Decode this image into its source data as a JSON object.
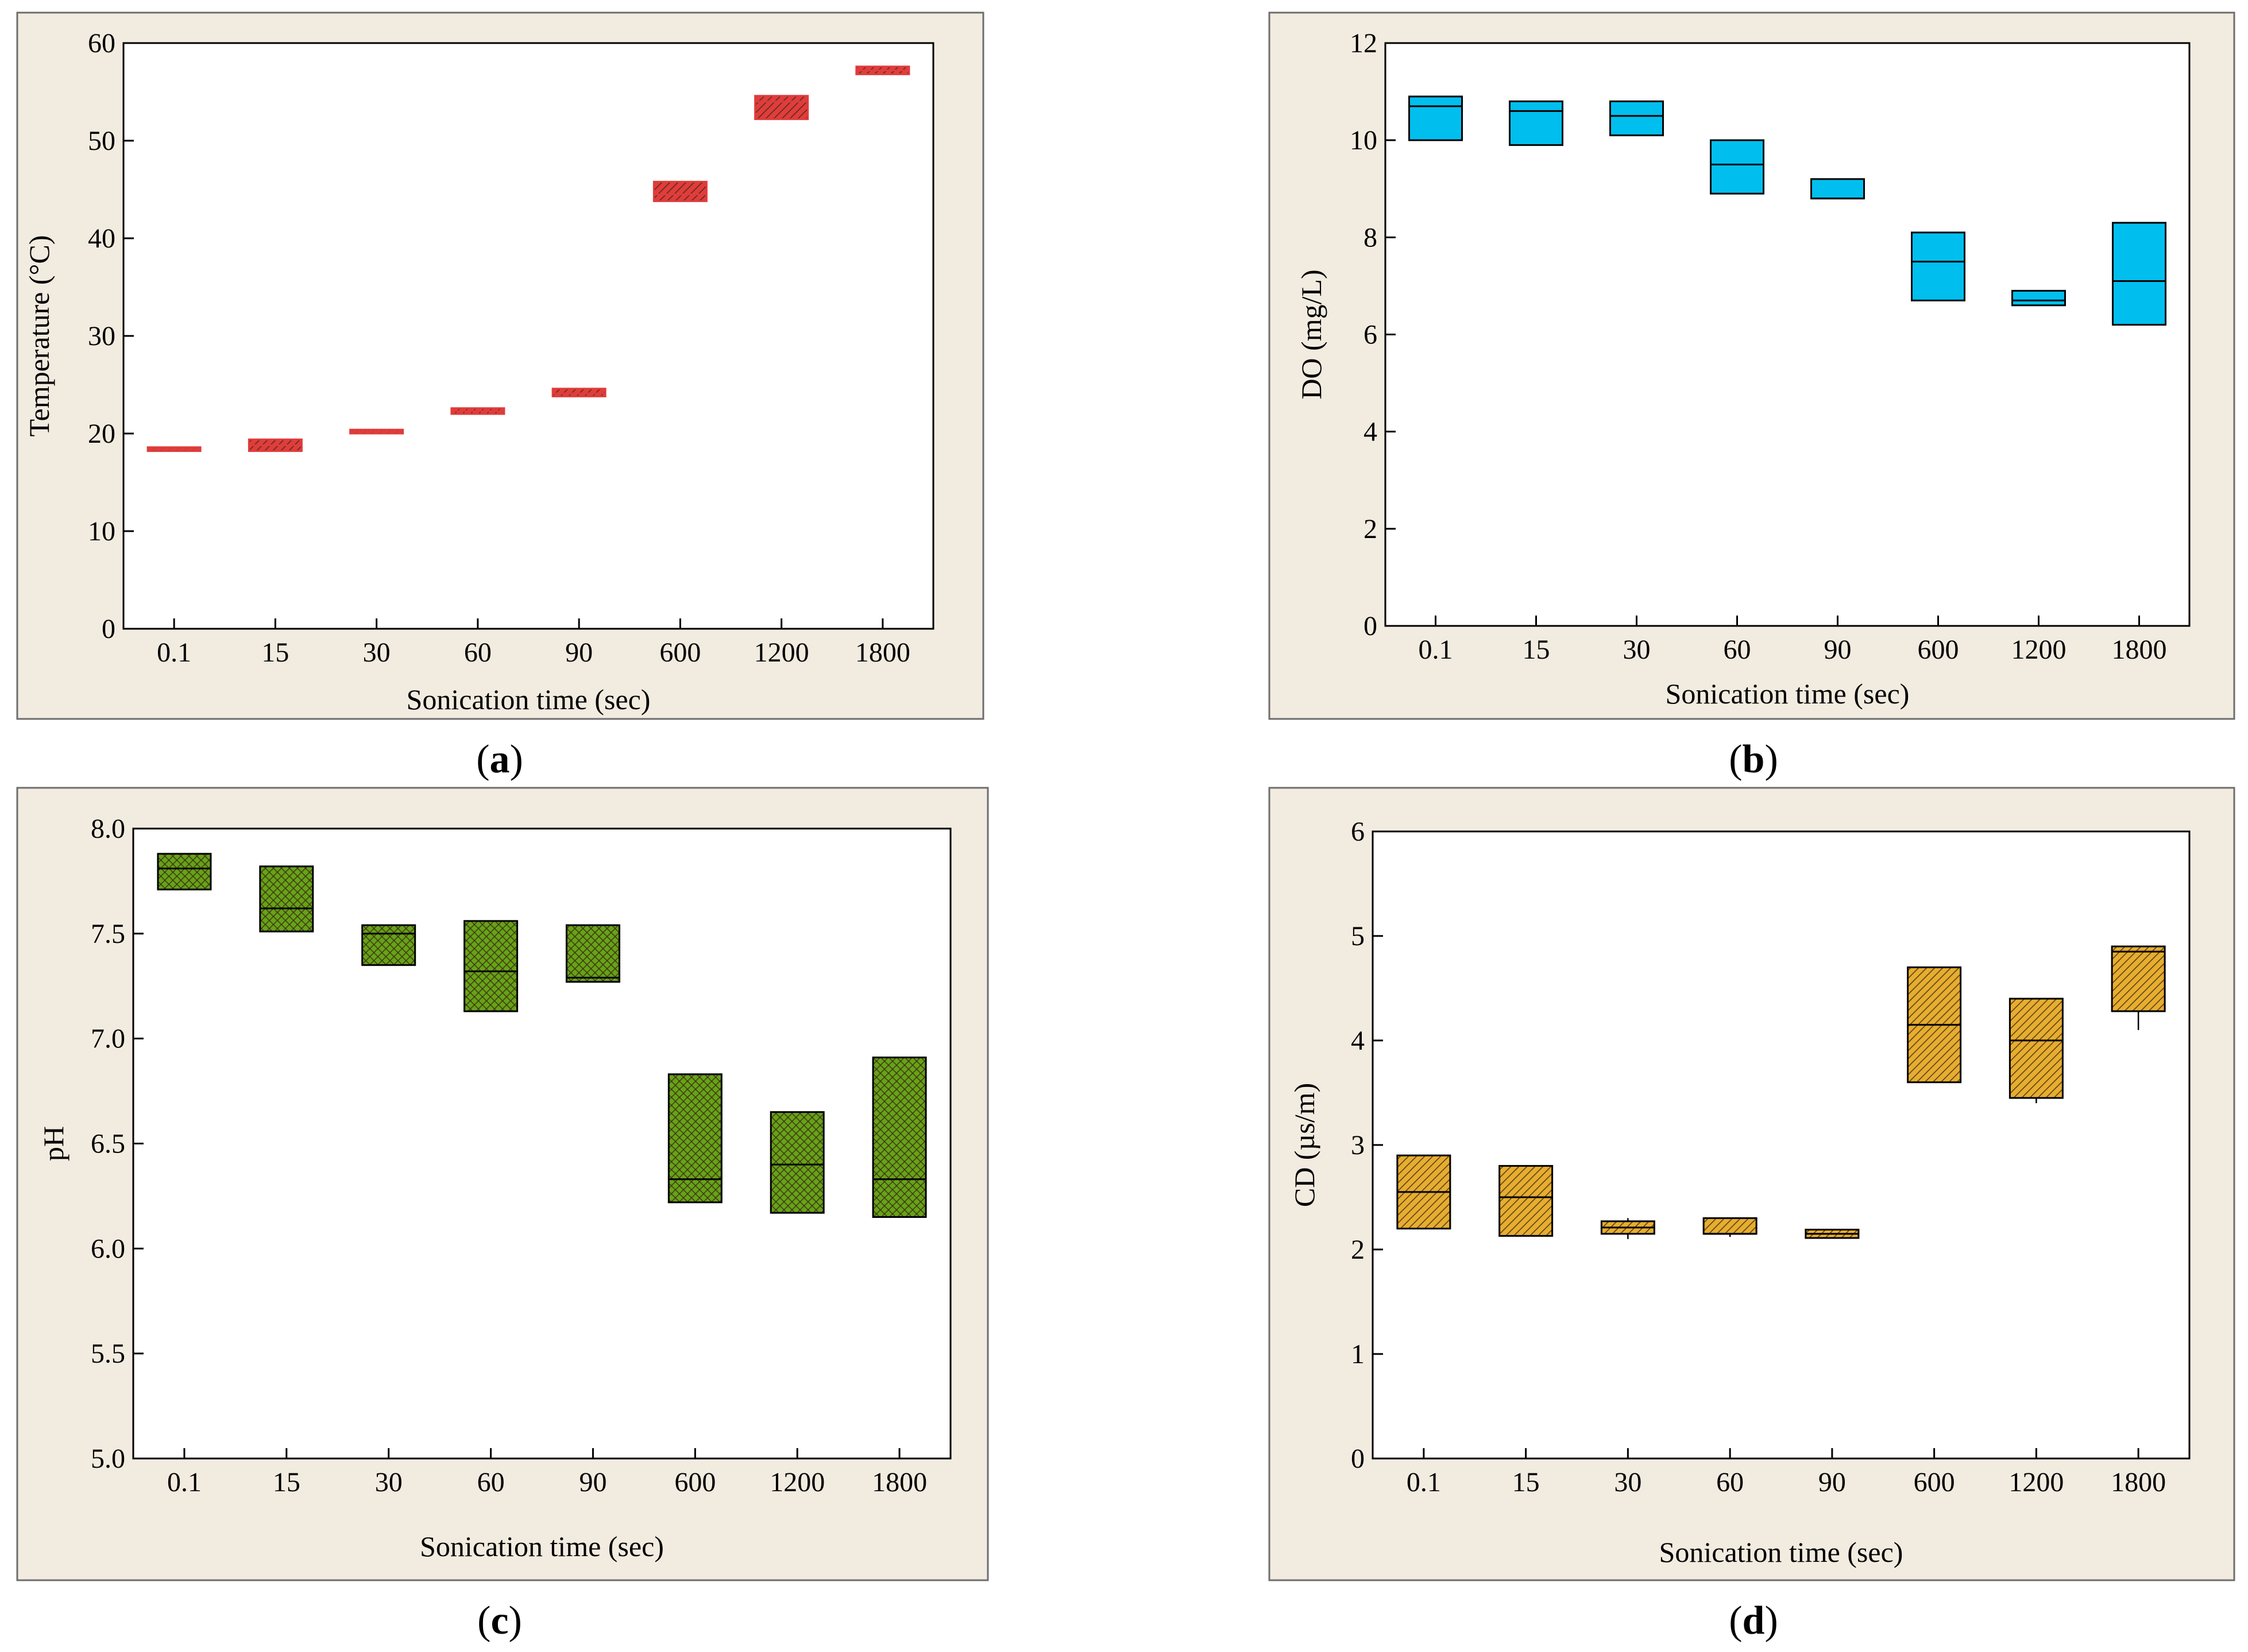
{
  "colors": {
    "panel_background": "#f2ebe0",
    "temperature_boxes": "#e03c3c",
    "do_boxes": "#00bfef",
    "ph_boxes": "#66a318",
    "cd_boxes": "#e7ad2f"
  },
  "chart_data": [
    {
      "type": "box",
      "panel_label": "a",
      "xlabel": "Sonication time (sec)",
      "ylabel": "Temperature (°C)",
      "categories": [
        "0.1",
        "15",
        "30",
        "60",
        "90",
        "600",
        "1200",
        "1800"
      ],
      "ylim": [
        0,
        60
      ],
      "yticks": [
        "0",
        "10",
        "20",
        "30",
        "40",
        "50",
        "60"
      ],
      "grid": false,
      "color_key": "temperature_boxes",
      "fill": "hatched",
      "boxes": [
        {
          "q1": 18.2,
          "median": 18.4,
          "q3": 18.6
        },
        {
          "q1": 18.2,
          "median": 18.8,
          "q3": 19.4
        },
        {
          "q1": 20.0,
          "median": 20.2,
          "q3": 20.4
        },
        {
          "q1": 22.0,
          "median": 22.3,
          "q3": 22.6
        },
        {
          "q1": 23.8,
          "median": 24.1,
          "q3": 24.6
        },
        {
          "q1": 43.8,
          "median": 44.5,
          "q3": 45.8
        },
        {
          "q1": 52.2,
          "median": 54.0,
          "q3": 54.6
        },
        {
          "q1": 56.8,
          "median": 57.2,
          "q3": 57.6
        }
      ]
    },
    {
      "type": "box",
      "panel_label": "b",
      "xlabel": "Sonication time (sec)",
      "ylabel": "DO (mg/L)",
      "categories": [
        "0.1",
        "15",
        "30",
        "60",
        "90",
        "600",
        "1200",
        "1800"
      ],
      "ylim": [
        0,
        12
      ],
      "yticks": [
        "0",
        "2",
        "4",
        "6",
        "8",
        "10",
        "12"
      ],
      "grid": false,
      "color_key": "do_boxes",
      "fill": "solid",
      "boxes": [
        {
          "q1": 10.0,
          "median": 10.7,
          "q3": 10.9
        },
        {
          "q1": 9.9,
          "median": 10.6,
          "q3": 10.8
        },
        {
          "q1": 10.1,
          "median": 10.5,
          "q3": 10.8
        },
        {
          "q1": 8.9,
          "median": 9.5,
          "q3": 10.0
        },
        {
          "q1": 8.8,
          "median": 8.8,
          "q3": 9.2
        },
        {
          "q1": 6.7,
          "median": 7.5,
          "q3": 8.1
        },
        {
          "q1": 6.6,
          "median": 6.7,
          "q3": 6.9
        },
        {
          "q1": 6.2,
          "median": 7.1,
          "q3": 8.3
        }
      ]
    },
    {
      "type": "box",
      "panel_label": "c",
      "xlabel": "Sonication time (sec)",
      "ylabel": "pH",
      "categories": [
        "0.1",
        "15",
        "30",
        "60",
        "90",
        "600",
        "1200",
        "1800"
      ],
      "ylim": [
        5.0,
        8.0
      ],
      "yticks": [
        "5.0",
        "5.5",
        "6.0",
        "6.5",
        "7.0",
        "7.5",
        "8.0"
      ],
      "grid": false,
      "color_key": "ph_boxes",
      "fill": "crosshatch",
      "boxes": [
        {
          "q1": 7.71,
          "median": 7.81,
          "q3": 7.88
        },
        {
          "q1": 7.51,
          "median": 7.62,
          "q3": 7.82
        },
        {
          "q1": 7.35,
          "median": 7.5,
          "q3": 7.54
        },
        {
          "q1": 7.13,
          "median": 7.32,
          "q3": 7.56
        },
        {
          "q1": 7.27,
          "median": 7.29,
          "q3": 7.54
        },
        {
          "q1": 6.22,
          "median": 6.33,
          "q3": 6.83
        },
        {
          "q1": 6.17,
          "median": 6.4,
          "q3": 6.65
        },
        {
          "q1": 6.15,
          "median": 6.33,
          "q3": 6.91
        }
      ]
    },
    {
      "type": "box",
      "panel_label": "d",
      "xlabel": "Sonication time (sec)",
      "ylabel": "CD (µs/m)",
      "categories": [
        "0.1",
        "15",
        "30",
        "60",
        "90",
        "600",
        "1200",
        "1800"
      ],
      "ylim": [
        0,
        6
      ],
      "yticks": [
        "0",
        "1",
        "2",
        "3",
        "4",
        "5",
        "6"
      ],
      "grid": false,
      "color_key": "cd_boxes",
      "fill": "hatched",
      "boxes": [
        {
          "q1": 2.2,
          "median": 2.55,
          "q3": 2.9
        },
        {
          "q1": 2.13,
          "median": 2.5,
          "q3": 2.8
        },
        {
          "q1": 2.15,
          "median": 2.21,
          "q3": 2.27,
          "whisker_low": 2.1,
          "whisker_high": 2.3
        },
        {
          "q1": 2.15,
          "median": 2.15,
          "q3": 2.3,
          "whisker_low": 2.12
        },
        {
          "q1": 2.11,
          "median": 2.15,
          "q3": 2.19
        },
        {
          "q1": 3.6,
          "median": 4.15,
          "q3": 4.7
        },
        {
          "q1": 3.45,
          "median": 4.0,
          "q3": 4.4,
          "whisker_low": 3.4
        },
        {
          "q1": 4.28,
          "median": 4.85,
          "q3": 4.9,
          "whisker_low": 4.1
        }
      ]
    }
  ]
}
